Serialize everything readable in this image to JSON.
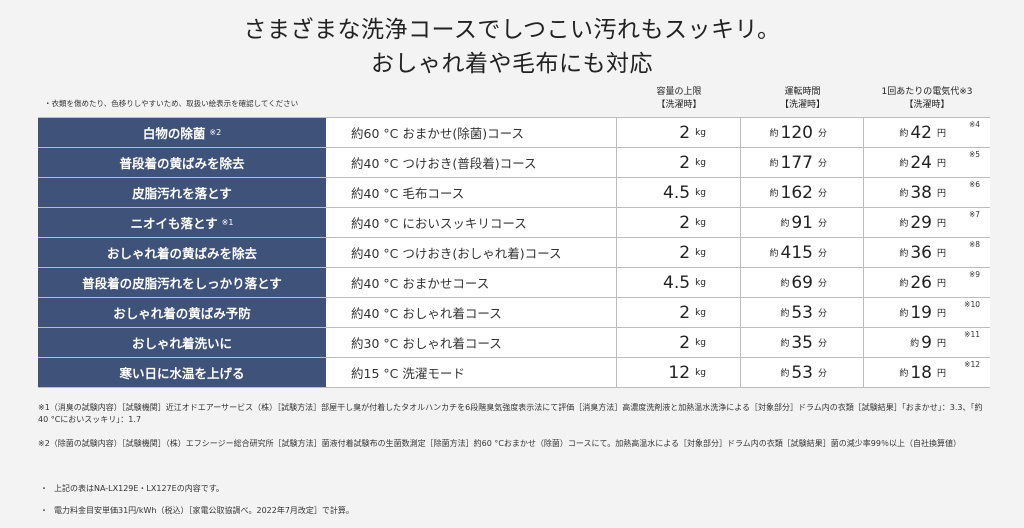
{
  "title": {
    "line1": "さまざまな洗浄コースでしつこい汚れもスッキリ。",
    "line2": "おしゃれ着や毛布にも対応"
  },
  "note_top": "・衣類を傷めたり、色移りしやすいため、取扱い絵表示を確認してください",
  "headers": {
    "capacity": [
      "容量の上限",
      "【洗濯時】"
    ],
    "time": [
      "運転時間",
      "【洗濯時】"
    ],
    "cost": [
      "1回あたりの電気代※3",
      "【洗濯時】"
    ]
  },
  "rows": [
    {
      "label": "白物の除菌",
      "sup": "※2",
      "course": "約60 °C おまかせ(除菌)コース",
      "cap": "2",
      "cap_unit": "kg",
      "time_pre": "約",
      "time": "120",
      "time_unit": "分",
      "cost_pre": "約",
      "cost": "42",
      "cost_unit": "円",
      "ref": "※4"
    },
    {
      "label": "普段着の黄ばみを除去",
      "sup": "",
      "course": "約40 °C つけおき(普段着)コース",
      "cap": "2",
      "cap_unit": "kg",
      "time_pre": "約",
      "time": "177",
      "time_unit": "分",
      "cost_pre": "約",
      "cost": "24",
      "cost_unit": "円",
      "ref": "※5"
    },
    {
      "label": "皮脂汚れを落とす",
      "sup": "",
      "course": "約40 °C 毛布コース",
      "cap": "4.5",
      "cap_unit": "kg",
      "time_pre": "約",
      "time": "162",
      "time_unit": "分",
      "cost_pre": "約",
      "cost": "38",
      "cost_unit": "円",
      "ref": "※6"
    },
    {
      "label": "ニオイも落とす",
      "sup": "※1",
      "course": "約40 °C においスッキリコース",
      "cap": "2",
      "cap_unit": "kg",
      "time_pre": "約",
      "time": "91",
      "time_unit": "分",
      "cost_pre": "約",
      "cost": "29",
      "cost_unit": "円",
      "ref": "※7"
    },
    {
      "label": "おしゃれ着の黄ばみを除去",
      "sup": "",
      "course": "約40 °C つけおき(おしゃれ着)コース",
      "cap": "2",
      "cap_unit": "kg",
      "time_pre": "約",
      "time": "415",
      "time_unit": "分",
      "cost_pre": "約",
      "cost": "36",
      "cost_unit": "円",
      "ref": "※8"
    },
    {
      "label": "普段着の皮脂汚れをしっかり落とす",
      "sup": "",
      "course": "約40 °C おまかせコース",
      "cap": "4.5",
      "cap_unit": "kg",
      "time_pre": "約",
      "time": "69",
      "time_unit": "分",
      "cost_pre": "約",
      "cost": "26",
      "cost_unit": "円",
      "ref": "※9"
    },
    {
      "label": "おしゃれ着の黄ばみ予防",
      "sup": "",
      "course": "約40 °C おしゃれ着コース",
      "cap": "2",
      "cap_unit": "kg",
      "time_pre": "約",
      "time": "53",
      "time_unit": "分",
      "cost_pre": "約",
      "cost": "19",
      "cost_unit": "円",
      "ref": "※10"
    },
    {
      "label": "おしゃれ着洗いに",
      "sup": "",
      "course": "約30 °C おしゃれ着コース",
      "cap": "2",
      "cap_unit": "kg",
      "time_pre": "約",
      "time": "35",
      "time_unit": "分",
      "cost_pre": "約",
      "cost": "9",
      "cost_unit": "円",
      "ref": "※11"
    },
    {
      "label": "寒い日に水温を上げる",
      "sup": "",
      "course": "約15 °C 洗濯モード",
      "cap": "12",
      "cap_unit": "kg",
      "time_pre": "約",
      "time": "53",
      "time_unit": "分",
      "cost_pre": "約",
      "cost": "18",
      "cost_unit": "円",
      "ref": "※12"
    }
  ],
  "footnotes": {
    "fn1": "※1（消臭の試験内容）［試験機関］近江オドエアーサービス（株）［試験方法］部屋干し臭が付着したタオルハンカチを6段階臭気強度表示法にて評価［消臭方法］高濃度洗剤液と加熱温水洗浄による［対象部分］ドラム内の衣類［試験結果］「おまかせ」：3.3、「約40 °Cにおいスッキリ」：1.7",
    "fn2": "※2（除菌の試験内容）［試験機関］（株）エフシージー総合研究所［試験方法］菌液付着試験布の生菌数測定［除菌方法］約60 °Cおまかせ（除菌）コースにて。加熱高温水による［対象部分］ドラム内の衣類［試験結果］菌の減少率99％以上（自社換算値）",
    "b1": "上記の表はNA-LX129E・LX127Eの内容です。",
    "b2": "電力料金目安単価31円/kWh（税込）［家電公取協調べ。2022年7月改定］で計算。",
    "bullet_mark": "・"
  },
  "colors": {
    "label_bg": "#3f5279",
    "page_bg": "#f3f3f3",
    "border": "#bdbdbd"
  }
}
